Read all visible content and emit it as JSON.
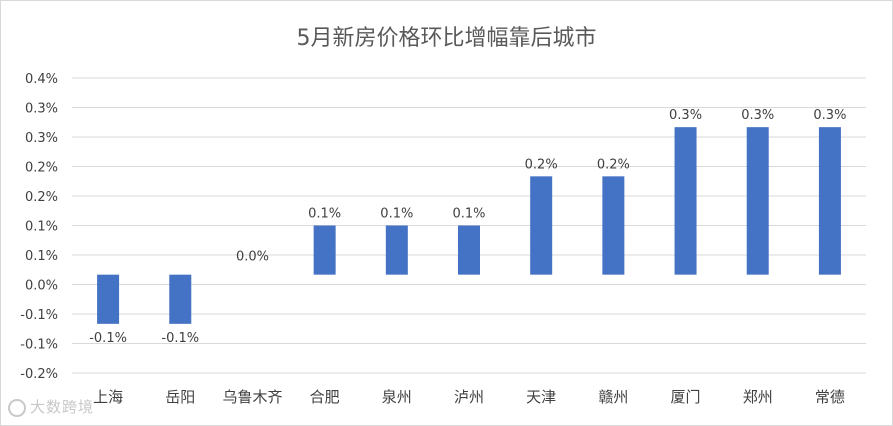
{
  "chart_data": {
    "type": "bar",
    "title": "5月新房价格环比增幅靠后城市",
    "categories": [
      "上海",
      "岳阳",
      "乌鲁木齐",
      "合肥",
      "泉州",
      "泸州",
      "天津",
      "赣州",
      "厦门",
      "郑州",
      "常德"
    ],
    "values": [
      -0.1,
      -0.1,
      0.0,
      0.1,
      0.1,
      0.1,
      0.2,
      0.2,
      0.3,
      0.3,
      0.3
    ],
    "data_labels": [
      "-0.1%",
      "-0.1%",
      "0.0%",
      "0.1%",
      "0.1%",
      "0.1%",
      "0.2%",
      "0.2%",
      "0.3%",
      "0.3%",
      "0.3%"
    ],
    "y_tick_labels": [
      "0.4%",
      "0.3%",
      "0.3%",
      "0.2%",
      "0.2%",
      "0.1%",
      "0.1%",
      "0.0%",
      "-0.1%",
      "-0.1%",
      "-0.2%"
    ],
    "ylim": [
      -0.2,
      0.4
    ],
    "grid": true,
    "bar_color": "#4472c4",
    "xlabel": "",
    "ylabel": ""
  },
  "watermark": {
    "text": "大数跨境",
    "icon": "logo-icon"
  }
}
